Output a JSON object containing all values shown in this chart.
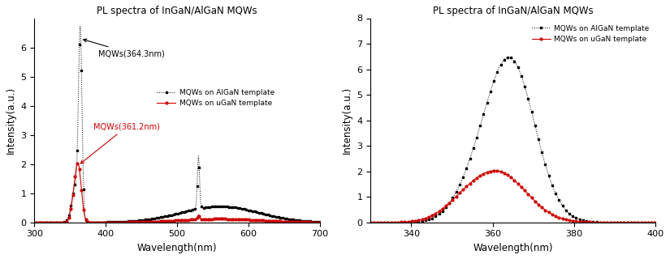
{
  "title": "PL spectra of InGaN/AlGaN MQWs",
  "xlabel": "Wavelength(nm)",
  "ylabel": "Intensity(a.u.)",
  "legend_algan": "MQWs on AlGaN template",
  "legend_ugan": "MQWs on uGaN template",
  "annotation_algan": "MQWs(364.3nm)",
  "annotation_ugan": "MQWs(361.2nm)",
  "annotation_ugan_color": "#cc0000",
  "plot1": {
    "xlim": [
      300,
      700
    ],
    "ylim": [
      0,
      7
    ],
    "yticks": [
      0,
      1,
      2,
      3,
      4,
      5,
      6
    ],
    "xticks": [
      300,
      400,
      500,
      600,
      700
    ]
  },
  "plot2": {
    "xlim": [
      330,
      400
    ],
    "ylim": [
      0,
      8
    ],
    "yticks": [
      0,
      1,
      2,
      3,
      4,
      5,
      6,
      7,
      8
    ],
    "xticks": [
      340,
      360,
      380,
      400
    ]
  }
}
